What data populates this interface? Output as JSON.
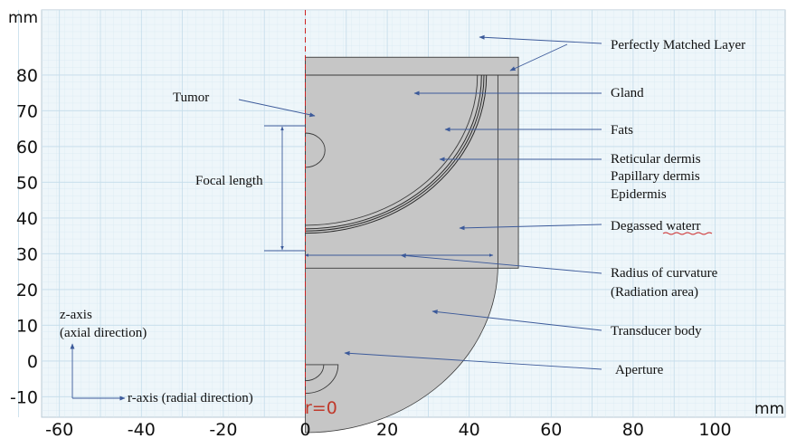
{
  "colors": {
    "plot_background": "#eef6fa",
    "grid_minor": "#d9e9f2",
    "grid_major": "#c4dcea",
    "region_fill": "#c6c6c6",
    "region_stroke": "#3a3a3a",
    "arrow": "#3c5a9a",
    "symmetry_axis": "#cc2222",
    "underline_spell": "#cc2222"
  },
  "axes": {
    "x_unit": "mm",
    "y_unit": "mm",
    "x_ticks": [
      "-60",
      "-40",
      "-20",
      "0",
      "20",
      "40",
      "60",
      "80",
      "100"
    ],
    "y_ticks": [
      "80",
      "70",
      "60",
      "50",
      "40",
      "30",
      "20",
      "10",
      "0",
      "-10"
    ],
    "x_range": [
      -70,
      115
    ],
    "y_range": [
      -14,
      86
    ]
  },
  "axis_marker": "r=0",
  "geometry_mm": {
    "domain_r_max": 52,
    "pml_r_start": 47,
    "domain_z_min": 26,
    "domain_z_max": 85,
    "pml_z_start": 80,
    "gland_radius": 42,
    "skin_radii": [
      43,
      43.6,
      44.2
    ],
    "skin_center_z": 80,
    "tumor_center_z": 59,
    "tumor_radius": 4.8,
    "transducer_radius": 47,
    "transducer_center_z": 27,
    "aperture_radius": 8,
    "aperture_inner_radius": 4.5,
    "aperture_center_z": -1
  },
  "annotations": {
    "pml": "Perfectly Matched Layer",
    "gland": "Gland",
    "tumor": "Tumor",
    "fats": "Fats",
    "reticular": "Reticular dermis",
    "papillary": "Papillary dermis",
    "epidermis": "Epidermis",
    "focal": "Focal length",
    "degassed": "Degassed waterr",
    "radius_1": "Radius of curvature",
    "radius_2": "(Radiation area)",
    "transducer": "Transducer body",
    "aperture": "Aperture",
    "z_axis_1": "z-axis",
    "z_axis_2": "(axial direction)",
    "r_axis": "r-axis (radial direction)"
  }
}
